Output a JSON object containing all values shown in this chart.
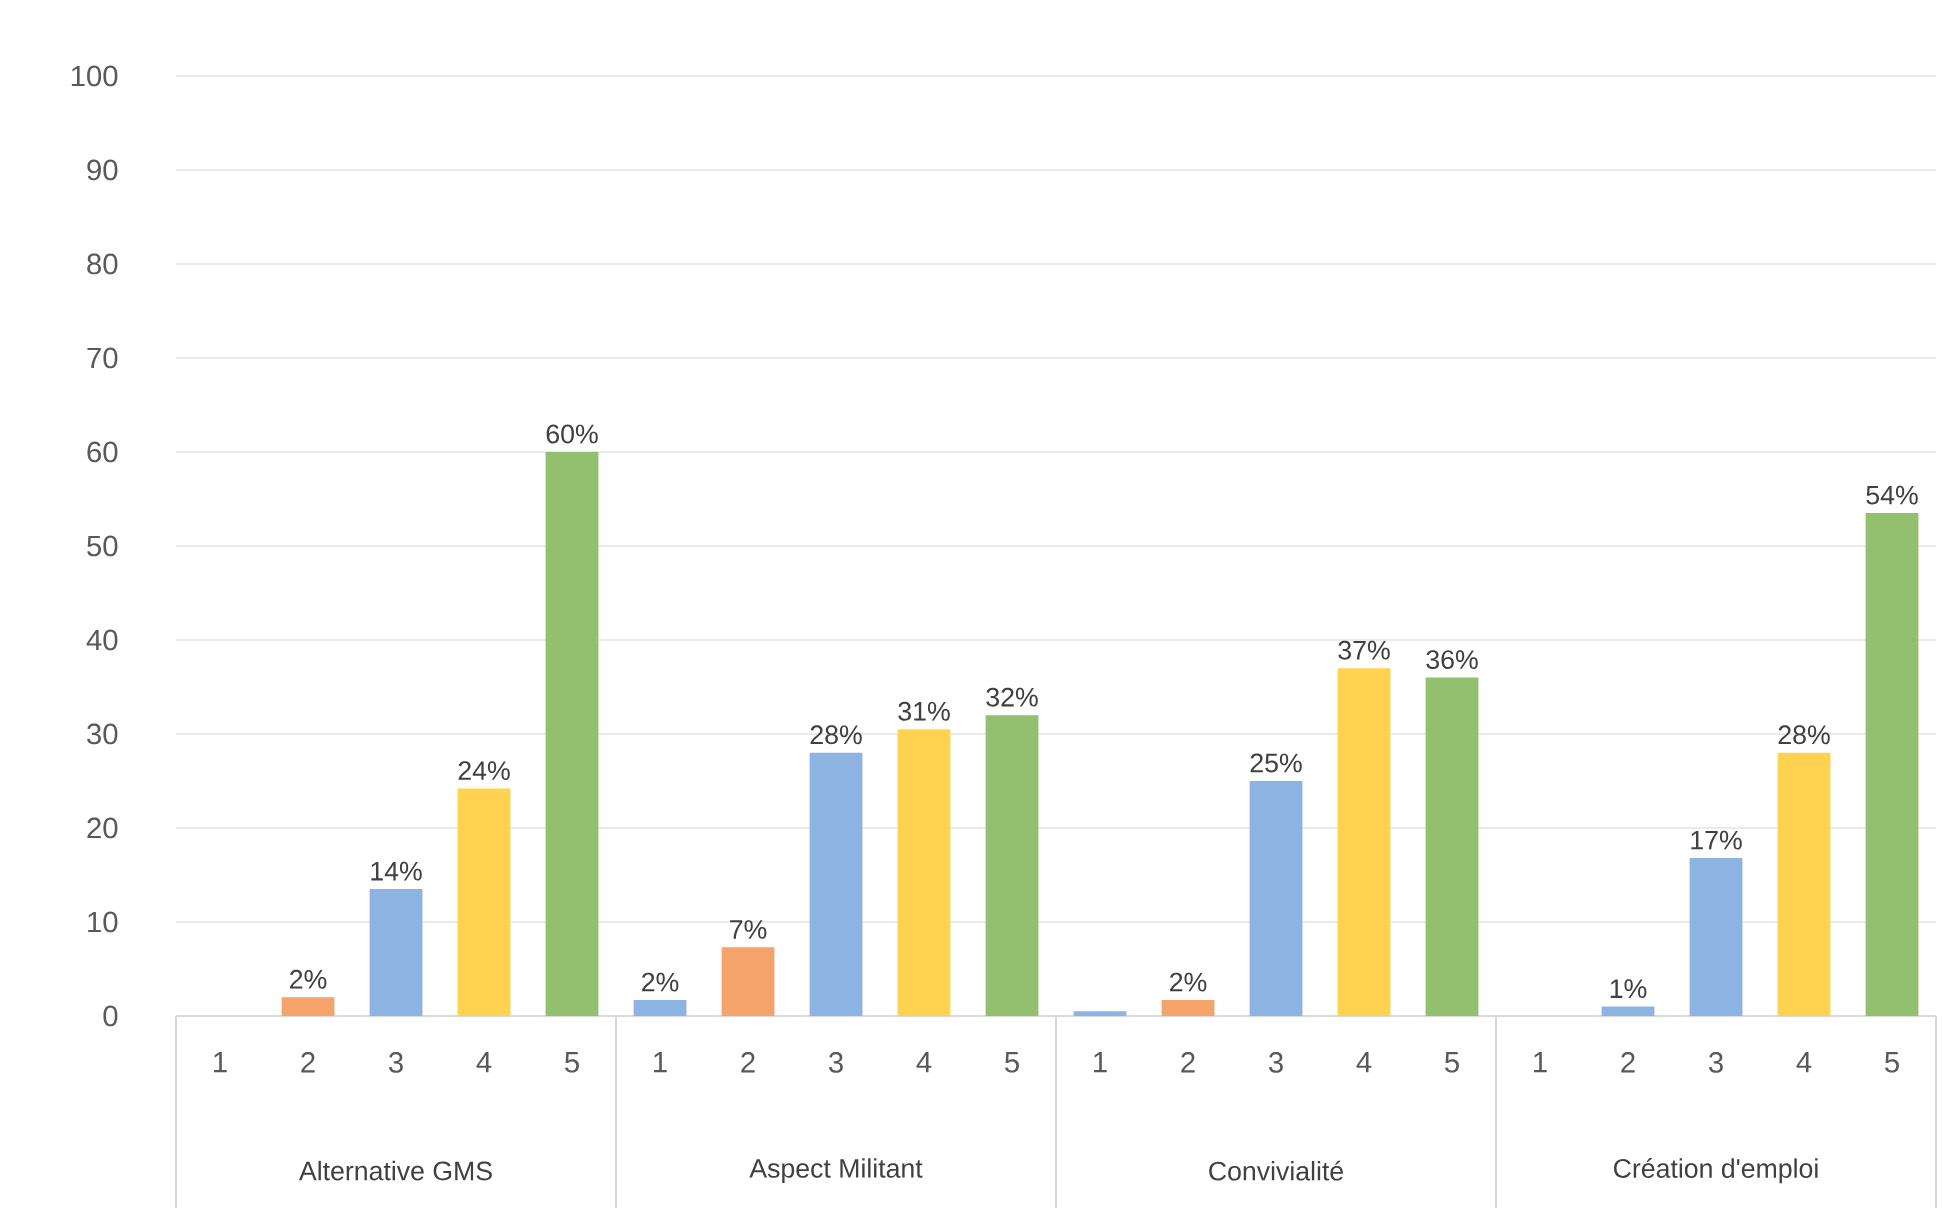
{
  "chart_data": {
    "type": "bar",
    "categories": [
      "Alternative GMS",
      "Aspect Militant",
      "Convivialité",
      "Création d'emploi"
    ],
    "series": [
      {
        "name": "1",
        "colors": [
          "#8db3e2",
          "#8db3e2",
          "#8db3e2",
          "#8db3e2"
        ],
        "values": [
          null,
          1.7,
          0.5,
          null
        ],
        "value_labels": [
          null,
          "2%",
          null,
          null
        ]
      },
      {
        "name": "2",
        "colors": [
          "#f4a36b",
          "#f4a36b",
          "#f4a36b",
          "#8db3e2"
        ],
        "values": [
          2,
          7.3,
          1.7,
          1
        ],
        "value_labels": [
          "2%",
          "7%",
          "2%",
          "1%"
        ]
      },
      {
        "name": "3",
        "colors": [
          "#8db3e2",
          "#8db3e2",
          "#8db3e2",
          "#8db3e2"
        ],
        "values": [
          13.5,
          28,
          25,
          16.8
        ],
        "value_labels": [
          "14%",
          "28%",
          "25%",
          "17%"
        ]
      },
      {
        "name": "4",
        "colors": [
          "#ffd34f",
          "#ffd34f",
          "#ffd34f",
          "#ffd34f"
        ],
        "values": [
          24.2,
          30.5,
          37,
          28
        ],
        "value_labels": [
          "24%",
          "31%",
          "37%",
          "28%"
        ]
      },
      {
        "name": "5",
        "colors": [
          "#93c06f",
          "#93c06f",
          "#93c06f",
          "#93c06f"
        ],
        "values": [
          60,
          32,
          36,
          53.5
        ],
        "value_labels": [
          "60%",
          "32%",
          "36%",
          "54%"
        ]
      }
    ],
    "ylim": [
      0,
      100
    ],
    "yticks": [
      0,
      10,
      20,
      30,
      40,
      50,
      60,
      70,
      80,
      90,
      100
    ],
    "grid": "y"
  }
}
